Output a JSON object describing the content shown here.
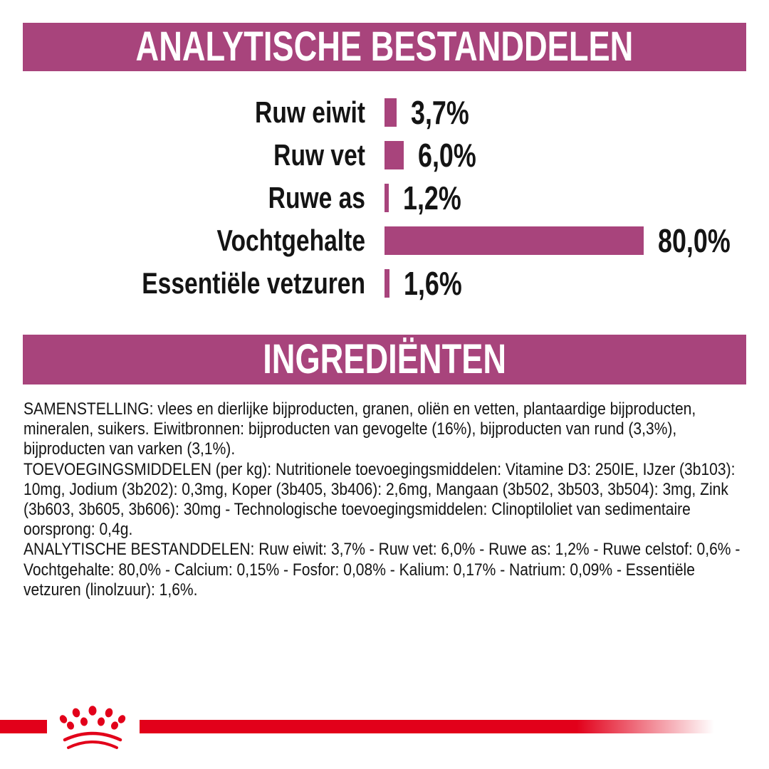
{
  "page": {
    "background": "#ffffff",
    "accent_magenta": "#a8447c",
    "accent_red": "#e2001a",
    "text_color": "#141414"
  },
  "sections": {
    "analytical": {
      "title": "ANALYTISCHE BESTANDDELEN"
    },
    "ingredients": {
      "title": "INGREDIËNTEN"
    }
  },
  "chart_data": {
    "type": "bar",
    "orientation": "horizontal",
    "title": "ANALYTISCHE BESTANDDELEN",
    "categories": [
      "Ruw eiwit",
      "Ruw vet",
      "Ruwe as",
      "Vochtgehalte",
      "Essentiële vetzuren"
    ],
    "values": [
      3.7,
      6.0,
      1.2,
      80.0,
      1.6
    ],
    "value_labels": [
      "3,7%",
      "6,0%",
      "1,2%",
      "80,0%",
      "1,6%"
    ],
    "unit": "%",
    "xlim": [
      0,
      80
    ],
    "bar_color": "#a8447c",
    "grid": false,
    "legend": false,
    "value_label_position": "right-of-bar",
    "category_label_position": "left-of-bar"
  },
  "ingredients_text": {
    "paragraphs": [
      "SAMENSTELLING: vlees en dierlijke bijproducten, granen, oliën en vetten, plantaardige bijproducten, mineralen, suikers. Eiwitbronnen: bijproducten van gevogelte (16%), bijproducten van rund (3,3%), bijproducten van varken (3,1%).",
      "TOEVOEGINGSMIDDELEN (per kg): Nutritionele toevoegingsmiddelen: Vitamine D3: 250IE, IJzer (3b103): 10mg, Jodium (3b202): 0,3mg, Koper (3b405, 3b406): 2,6mg, Mangaan (3b502, 3b503, 3b504): 3mg, Zink (3b603, 3b605, 3b606): 30mg - Technologische toevoegingsmiddelen: Clinoptiloliet van sedimentaire oorsprong: 0,4g.",
      "ANALYTISCHE BESTANDDELEN: Ruw eiwit: 3,7% - Ruw vet: 6,0% - Ruwe as: 1,2% - Ruwe celstof: 0,6% - Vochtgehalte: 80,0% - Calcium: 0,15% - Fosfor: 0,08% - Kalium: 0,17% - Natrium: 0,09% - Essentiële vetzuren (linolzuur): 1,6%."
    ]
  },
  "footer": {
    "logo_icon": "royal-canin-paw-logo",
    "ribbon_color": "#e2001a"
  }
}
